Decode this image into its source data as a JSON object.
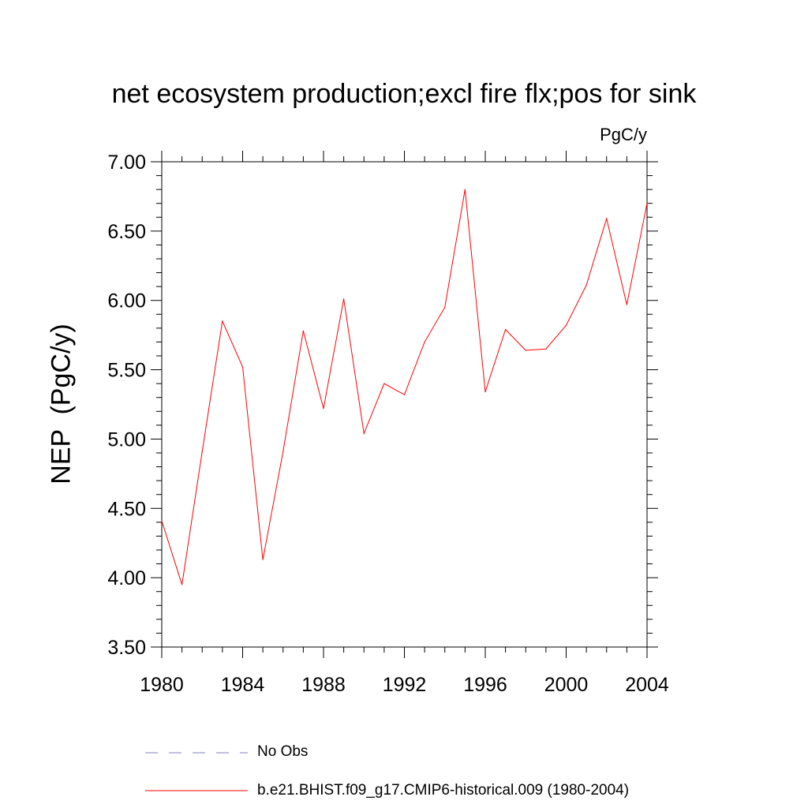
{
  "chart_data": {
    "type": "line",
    "title": "net ecosystem production;excl fire flx;pos for sink",
    "units": "PgC/y",
    "ylabel": "NEP  (PgC/y)",
    "xlabel": "",
    "xlim": [
      1980,
      2004
    ],
    "ylim": [
      3.5,
      7.0
    ],
    "xticks": [
      "1980",
      "1984",
      "1988",
      "1992",
      "1996",
      "2000",
      "2004"
    ],
    "yticks": [
      "3.50",
      "4.00",
      "4.50",
      "5.00",
      "5.50",
      "6.00",
      "6.50",
      "7.00"
    ],
    "x": [
      1980,
      1981,
      1982,
      1983,
      1984,
      1985,
      1986,
      1987,
      1988,
      1989,
      1990,
      1991,
      1992,
      1993,
      1994,
      1995,
      1996,
      1997,
      1998,
      1999,
      2000,
      2001,
      2002,
      2003,
      2004
    ],
    "series": [
      {
        "name": "b.e21.BHIST.f09_g17.CMIP6-historical.009 (1980-2004)",
        "color": "#ff0000",
        "values": [
          4.41,
          3.95,
          4.91,
          5.85,
          5.52,
          4.13,
          4.91,
          5.78,
          5.22,
          6.01,
          5.04,
          5.4,
          5.32,
          5.7,
          5.95,
          6.8,
          5.34,
          5.79,
          5.64,
          5.65,
          5.82,
          6.11,
          6.59,
          5.97,
          6.7
        ]
      }
    ],
    "legend": [
      {
        "label": "No Obs",
        "color": "#8080c0",
        "style": "dashed"
      },
      {
        "label": "b.e21.BHIST.f09_g17.CMIP6-historical.009 (1980-2004)",
        "color": "#ff0000",
        "style": "solid"
      }
    ],
    "legend_position": "bottom"
  }
}
